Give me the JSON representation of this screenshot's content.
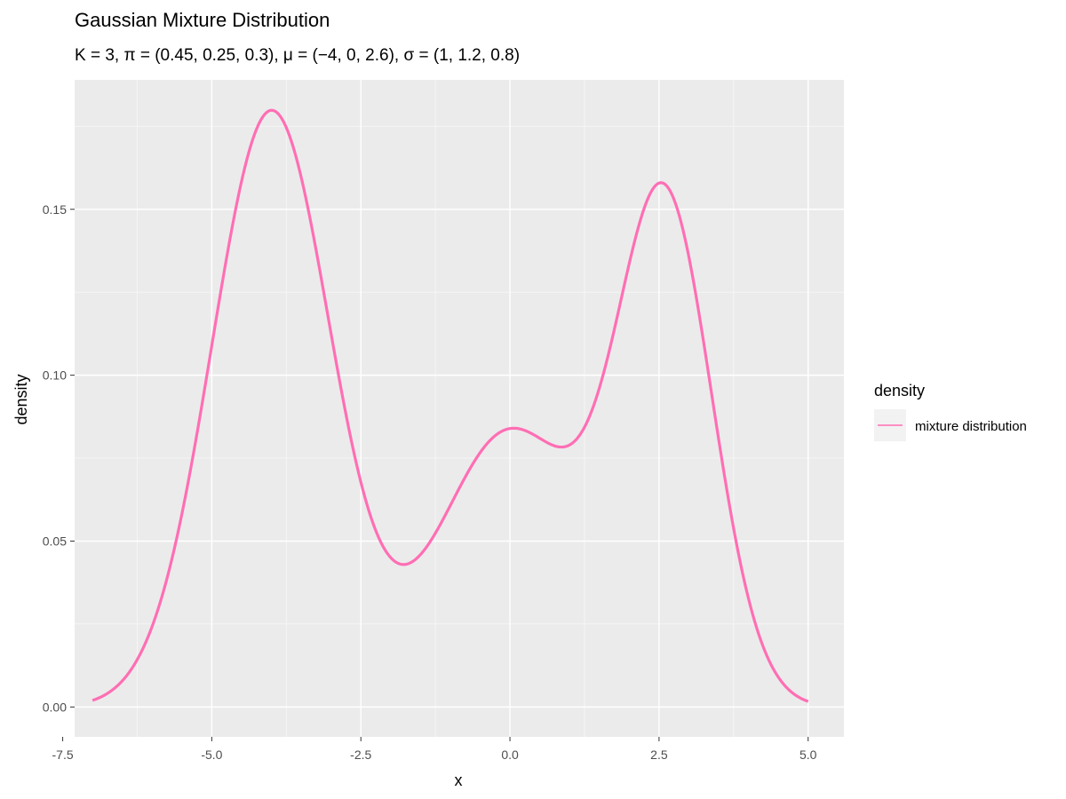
{
  "chart_data": {
    "type": "line",
    "title": "Gaussian Mixture Distribution",
    "subtitle": "K = 3, π = (0.45, 0.25, 0.3), μ = (−4, 0, 2.6), σ = (1, 1.2, 0.8)",
    "xlabel": "x",
    "ylabel": "density",
    "xlim": [
      -7.3,
      5.6
    ],
    "ylim": [
      -0.009,
      0.189
    ],
    "x_ticks": [
      -7.5,
      -5.0,
      -2.5,
      0.0,
      2.5,
      5.0
    ],
    "x_tick_labels": [
      "-7.5",
      "-5.0",
      "-2.5",
      "0.0",
      "2.5",
      "5.0"
    ],
    "y_ticks": [
      0.0,
      0.05,
      0.1,
      0.15
    ],
    "y_tick_labels": [
      "0.00",
      "0.05",
      "0.10",
      "0.15"
    ],
    "grid": true,
    "legend": {
      "title": "density",
      "position": "right",
      "entries": [
        "mixture distribution"
      ]
    },
    "components": {
      "K": 3,
      "pi": [
        0.45,
        0.25,
        0.3
      ],
      "mu": [
        -4,
        0,
        2.6
      ],
      "sigma": [
        1,
        1.2,
        0.8
      ]
    },
    "x_range": [
      -7,
      5
    ],
    "series": [
      {
        "name": "mixture distribution",
        "color": "#ff6eb4"
      }
    ]
  },
  "colors": {
    "panel": "#ebebeb",
    "grid_major": "#ffffff",
    "grid_minor": "#f5f5f5",
    "line": "#ff6eb4",
    "tick": "#333333"
  }
}
